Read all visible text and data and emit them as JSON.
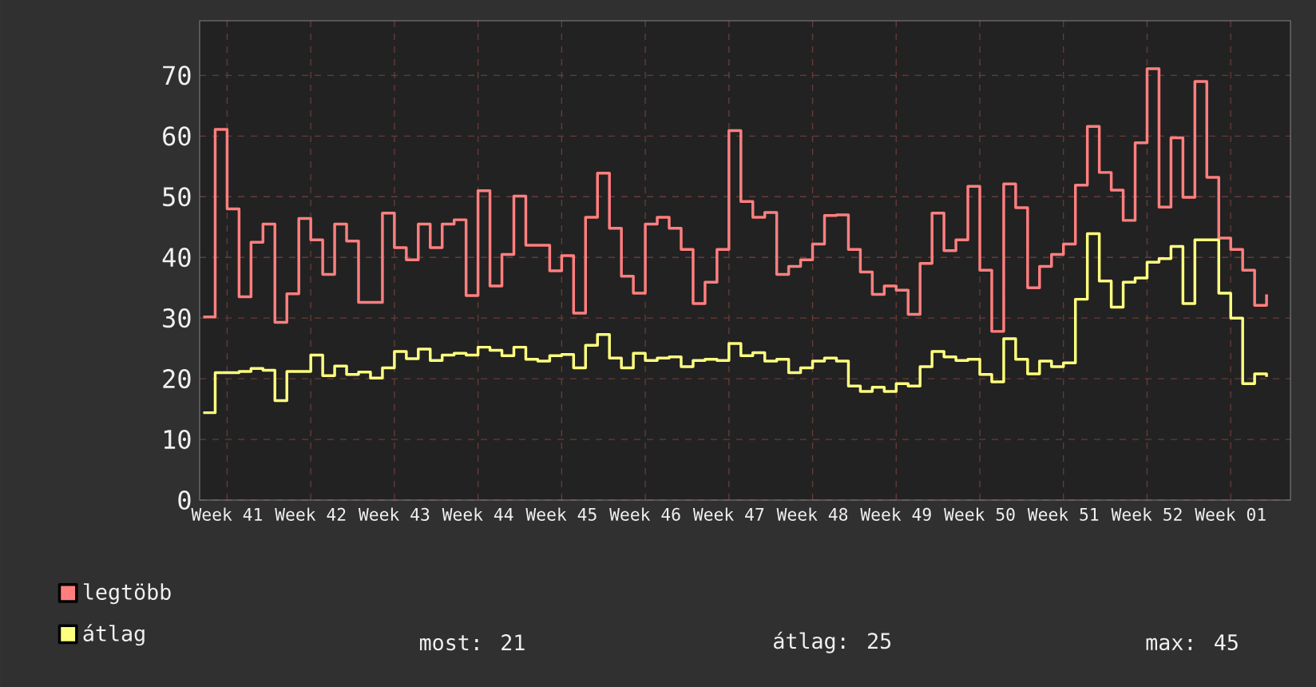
{
  "chart_data": {
    "type": "step",
    "categories": [
      null,
      null,
      "Week 41",
      null,
      null,
      null,
      null,
      null,
      null,
      "Week 42",
      null,
      null,
      null,
      null,
      null,
      null,
      "Week 43",
      null,
      null,
      null,
      null,
      null,
      null,
      "Week 44",
      null,
      null,
      null,
      null,
      null,
      null,
      "Week 45",
      null,
      null,
      null,
      null,
      null,
      null,
      "Week 46",
      null,
      null,
      null,
      null,
      null,
      null,
      "Week 47",
      null,
      null,
      null,
      null,
      null,
      null,
      "Week 48",
      null,
      null,
      null,
      null,
      null,
      null,
      "Week 49",
      null,
      null,
      null,
      null,
      null,
      null,
      "Week 50",
      null,
      null,
      null,
      null,
      null,
      null,
      "Week 51",
      null,
      null,
      null,
      null,
      null,
      null,
      "Week 52",
      null,
      null,
      null,
      null,
      null,
      null,
      "Week 01",
      null,
      null,
      null
    ],
    "series": [
      {
        "name": "legtöbb",
        "color": "#ff7f7f",
        "values": [
          30.2,
          61.1,
          48,
          33.5,
          42.5,
          45.5,
          29.3,
          34,
          46.4,
          42.9,
          37.2,
          45.5,
          42.7,
          32.6,
          32.6,
          47.3,
          41.6,
          39.6,
          45.5,
          41.6,
          45.5,
          46.2,
          33.7,
          51,
          35.3,
          40.5,
          50.1,
          42,
          42,
          37.8,
          40.3,
          30.8,
          46.6,
          53.9,
          44.8,
          36.9,
          34.1,
          45.5,
          46.6,
          44.8,
          41.3,
          32.4,
          35.9,
          41.3,
          60.9,
          49.2,
          46.6,
          47.4,
          37.2,
          38.5,
          39.6,
          42.2,
          46.9,
          47,
          41.3,
          37.6,
          33.9,
          35.3,
          34.6,
          30.6,
          39,
          47.3,
          41.1,
          42.9,
          51.7,
          37.9,
          27.8,
          52.1,
          48.2,
          35,
          38.5,
          40.5,
          42.2,
          51.9,
          61.6,
          54,
          51.1,
          46.1,
          58.9,
          71.1,
          48.3,
          59.7,
          49.9,
          69,
          53.2,
          43.2,
          41.3,
          37.9,
          32.1,
          33.9
        ]
      },
      {
        "name": "átlag",
        "color": "#ffff7f",
        "values": [
          14.4,
          21,
          21,
          21.2,
          21.7,
          21.4,
          16.4,
          21.2,
          21.2,
          23.9,
          20.5,
          22.1,
          20.7,
          21.1,
          20.1,
          21.8,
          24.5,
          23.3,
          24.9,
          23,
          23.9,
          24.2,
          23.9,
          25.2,
          24.7,
          23.8,
          25.2,
          23.2,
          22.9,
          23.8,
          24,
          21.8,
          25.5,
          27.3,
          23.4,
          21.8,
          24.2,
          23,
          23.4,
          23.6,
          22,
          23,
          23.2,
          23,
          25.8,
          23.8,
          24.3,
          22.9,
          23.2,
          21,
          21.8,
          22.9,
          23.4,
          22.9,
          18.8,
          17.9,
          18.6,
          17.9,
          19.2,
          18.8,
          22,
          24.5,
          23.6,
          23,
          23.2,
          20.7,
          19.5,
          26.6,
          23.2,
          20.8,
          22.9,
          22,
          22.6,
          33.1,
          43.9,
          36.1,
          31.8,
          35.9,
          36.6,
          39.2,
          39.8,
          41.8,
          32.4,
          42.9,
          42.9,
          34.1,
          30,
          19.2,
          20.8,
          20.3
        ]
      }
    ],
    "ylim": [
      0,
      79
    ],
    "yticks": [
      0,
      10,
      20,
      30,
      40,
      50,
      60,
      70
    ],
    "grid": true,
    "legend": "bottom",
    "annotations": [
      "most: 21",
      "átlag: 25",
      "max: 45"
    ]
  }
}
